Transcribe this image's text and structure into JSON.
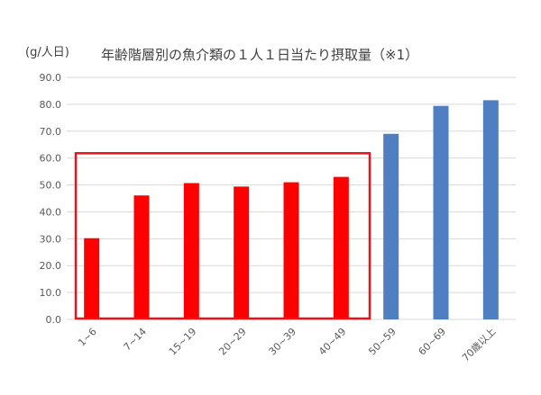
{
  "chart_data": {
    "type": "bar",
    "title": "年齢階層別の魚介類の１人１日当たり摂取量（※1）",
    "ylabel": "(g/人日)",
    "xlabel": "",
    "categories": [
      "1~6",
      "7~14",
      "15~19",
      "20~29",
      "30~39",
      "40~49",
      "50~59",
      "60~69",
      "70歳以上"
    ],
    "values": [
      30.2,
      46.1,
      50.7,
      49.4,
      51.0,
      53.0,
      69.0,
      79.4,
      81.5
    ],
    "ylim": [
      0,
      90
    ],
    "yticks": [
      "0.0",
      "10.0",
      "20.0",
      "30.0",
      "40.0",
      "50.0",
      "60.0",
      "70.0",
      "80.0",
      "90.0"
    ],
    "grid": true,
    "colors": {
      "young": "#ff0000",
      "older": "#4f7fc1",
      "highlight_box": "#e8141a",
      "grid": "#d9d9d9"
    },
    "young_count": 6,
    "highlight_groups": [
      "1~6",
      "7~14",
      "15~19",
      "20~29",
      "30~39",
      "40~49"
    ]
  }
}
